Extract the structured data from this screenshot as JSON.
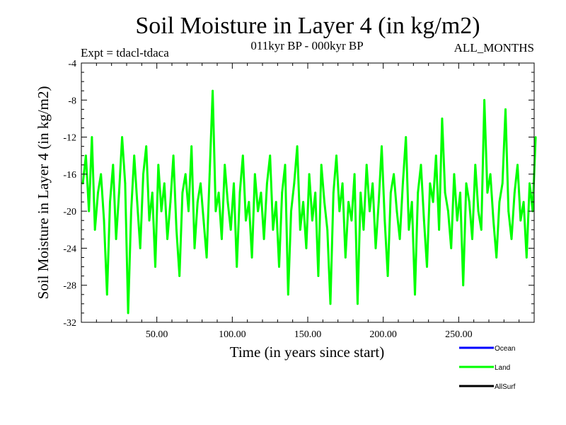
{
  "chart_data": {
    "type": "line",
    "title": "Soil Moisture in Layer 4 (in kg/m2)",
    "subtitle_left": "Expt = tdacl-tdaca",
    "subtitle_center": "011kyr BP - 000kyr BP",
    "subtitle_right": "ALL_MONTHS",
    "xlabel": "Time (in years since start)",
    "ylabel": "Soil Moisture in Layer 4 (in kg/m2)",
    "xlim": [
      0,
      300
    ],
    "ylim": [
      -32,
      -4
    ],
    "x_ticks": [
      50,
      100,
      150,
      200,
      250
    ],
    "x_tick_labels": [
      "50.00",
      "100.00",
      "150.00",
      "200.00",
      "250.00"
    ],
    "y_ticks": [
      -32,
      -28,
      -24,
      -20,
      -16,
      -12,
      -8,
      -4
    ],
    "y_tick_labels": [
      "-32",
      "-28",
      "-24",
      "-20",
      "-16",
      "-12",
      "-8",
      "-4"
    ],
    "legend": [
      {
        "name": "Ocean",
        "color": "#0000ff"
      },
      {
        "name": "Land",
        "color": "#00ff00"
      },
      {
        "name": "AllSurf",
        "color": "#000000"
      }
    ],
    "legend_position": "bottom-right",
    "series": [
      {
        "name": "Land",
        "color": "#00ff00",
        "x_start": 1,
        "x_step": 2,
        "values": [
          -17,
          -14,
          -20,
          -12,
          -22,
          -18,
          -16,
          -21,
          -29,
          -19,
          -15,
          -23,
          -18,
          -12,
          -17,
          -31,
          -20,
          -14,
          -19,
          -24,
          -16,
          -13,
          -21,
          -18,
          -26,
          -15,
          -20,
          -17,
          -23,
          -19,
          -14,
          -22,
          -27,
          -18,
          -16,
          -20,
          -13,
          -24,
          -19,
          -17,
          -21,
          -25,
          -16,
          -7,
          -20,
          -18,
          -23,
          -15,
          -19,
          -22,
          -17,
          -26,
          -18,
          -14,
          -21,
          -19,
          -25,
          -16,
          -20,
          -18,
          -23,
          -17,
          -14,
          -22,
          -19,
          -26,
          -18,
          -15,
          -29,
          -20,
          -17,
          -13,
          -22,
          -19,
          -24,
          -16,
          -21,
          -18,
          -27,
          -15,
          -19,
          -22,
          -30,
          -18,
          -14,
          -20,
          -17,
          -25,
          -19,
          -21,
          -16,
          -30,
          -18,
          -22,
          -15,
          -20,
          -17,
          -24,
          -19,
          -13,
          -21,
          -27,
          -18,
          -16,
          -20,
          -23,
          -17,
          -12,
          -22,
          -19,
          -29,
          -18,
          -15,
          -21,
          -26,
          -17,
          -19,
          -14,
          -22,
          -10,
          -18,
          -20,
          -24,
          -16,
          -21,
          -18,
          -28,
          -17,
          -19,
          -23,
          -15,
          -20,
          -22,
          -8,
          -18,
          -16,
          -21,
          -25,
          -19,
          -17,
          -9,
          -20,
          -23,
          -18,
          -15,
          -21,
          -19,
          -25,
          -17,
          -20,
          -12
        ]
      }
    ]
  }
}
